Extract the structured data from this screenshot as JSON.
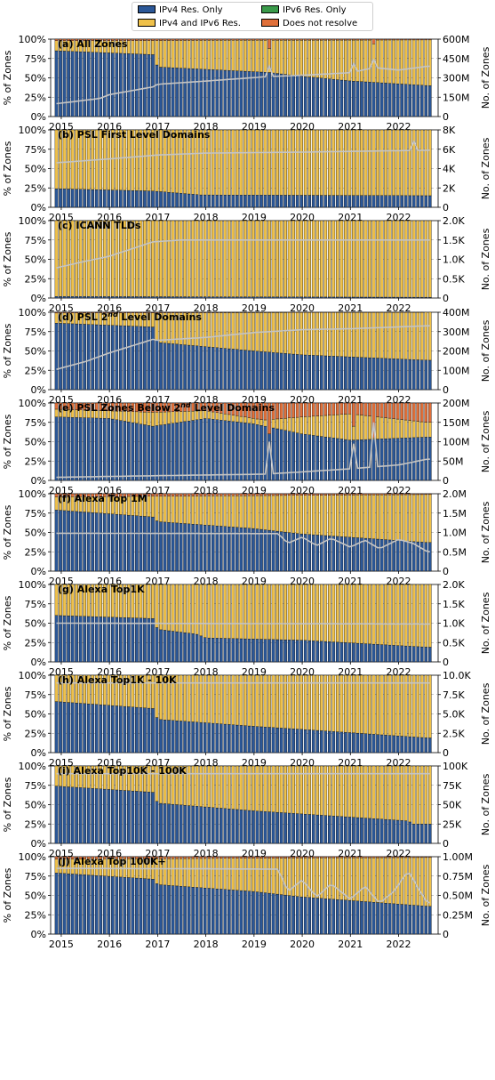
{
  "legend": {
    "items": [
      {
        "label": "IPv4 Res. Only",
        "color": "#2b5797"
      },
      {
        "label": "IPv6 Res. Only",
        "color": "#3a9a4a"
      },
      {
        "label": "IPv4 and IPv6 Res.",
        "color": "#efc14a"
      },
      {
        "label": "Does not resolve",
        "color": "#e0703a"
      }
    ]
  },
  "colors": {
    "ipv4": "#2b5797",
    "ipv6": "#3a9a4a",
    "both": "#efc14a",
    "none": "#e0703a",
    "line": "#c4c4c4"
  },
  "shared": {
    "x_ticks": [
      "2015",
      "2016",
      "2017",
      "2018",
      "2019",
      "2020",
      "2021",
      "2022"
    ],
    "y_left_ticks": [
      "0%",
      "25%",
      "50%",
      "75%",
      "100%"
    ],
    "y_left_label": "% of Zones",
    "y_right_label": "No. of Zones"
  },
  "chart_data": [
    {
      "type": "bar",
      "title": "(a) All Zones",
      "stack": "percent",
      "x_range": [
        2014.9,
        2022.75
      ],
      "ylim": [
        0,
        100
      ],
      "ipv4_keypoints": [
        [
          2014.9,
          85
        ],
        [
          2016.9,
          80
        ],
        [
          2017.0,
          64
        ],
        [
          2019.3,
          57
        ],
        [
          2020.0,
          52
        ],
        [
          2021.0,
          46
        ],
        [
          2022.6,
          40
        ]
      ],
      "none_keypoints": [
        [
          2014.9,
          2
        ],
        [
          2022.6,
          1
        ]
      ],
      "ipv6_keypoints": [
        [
          2014.9,
          0
        ],
        [
          2022.6,
          0
        ]
      ],
      "none_spikes": [
        [
          2019.35,
          12
        ],
        [
          2021.5,
          6
        ]
      ],
      "right_axis": {
        "ticks": [
          "0",
          "150M",
          "300M",
          "450M",
          "600M"
        ],
        "max": 600
      },
      "count_keypoints": [
        [
          2014.9,
          100
        ],
        [
          2015.8,
          140
        ],
        [
          2016.0,
          170
        ],
        [
          2016.9,
          230
        ],
        [
          2017.0,
          250
        ],
        [
          2018.0,
          275
        ],
        [
          2019.3,
          310
        ],
        [
          2020.0,
          320
        ],
        [
          2021.0,
          340
        ],
        [
          2021.5,
          380
        ],
        [
          2022.0,
          360
        ],
        [
          2022.6,
          390
        ]
      ],
      "count_spikes": [
        [
          2019.35,
          390
        ],
        [
          2021.5,
          440
        ],
        [
          2021.05,
          410
        ]
      ]
    },
    {
      "type": "bar",
      "title": "(b) PSL First Level Domains",
      "stack": "percent",
      "x_range": [
        2014.9,
        2022.75
      ],
      "ylim": [
        0,
        100
      ],
      "ipv4_keypoints": [
        [
          2014.9,
          24
        ],
        [
          2016.9,
          21
        ],
        [
          2017.9,
          16
        ],
        [
          2022.6,
          15
        ]
      ],
      "none_keypoints": [
        [
          2014.9,
          0
        ],
        [
          2022.6,
          0
        ]
      ],
      "ipv6_keypoints": [
        [
          2014.9,
          0
        ],
        [
          2022.6,
          0
        ]
      ],
      "none_spikes": [],
      "right_axis": {
        "ticks": [
          "0",
          "2K",
          "4K",
          "6K",
          "8K"
        ],
        "max": 8
      },
      "count_keypoints": [
        [
          2014.9,
          4.6
        ],
        [
          2016.0,
          5.0
        ],
        [
          2017.0,
          5.4
        ],
        [
          2018.0,
          5.6
        ],
        [
          2020.0,
          5.7
        ],
        [
          2022.6,
          5.9
        ]
      ],
      "count_spikes": [
        [
          2022.35,
          6.8
        ]
      ]
    },
    {
      "type": "bar",
      "title": "(c) ICANN TLDs",
      "stack": "percent",
      "x_range": [
        2014.9,
        2022.75
      ],
      "ylim": [
        0,
        100
      ],
      "ipv4_keypoints": [
        [
          2014.9,
          2
        ],
        [
          2022.6,
          1
        ]
      ],
      "none_keypoints": [
        [
          2014.9,
          0
        ],
        [
          2022.6,
          0
        ]
      ],
      "ipv6_keypoints": [
        [
          2014.9,
          0
        ],
        [
          2022.6,
          0
        ]
      ],
      "none_spikes": [],
      "right_axis": {
        "ticks": [
          "0",
          "0.5K",
          "1.0K",
          "1.5K",
          "2.0K"
        ],
        "max": 2.0
      },
      "count_keypoints": [
        [
          2014.9,
          0.78
        ],
        [
          2015.5,
          0.95
        ],
        [
          2016.0,
          1.08
        ],
        [
          2016.9,
          1.45
        ],
        [
          2017.5,
          1.5
        ],
        [
          2022.6,
          1.5
        ]
      ],
      "count_spikes": []
    },
    {
      "type": "bar",
      "title": "(d) PSL 2nd Level Domains",
      "stack": "percent",
      "x_range": [
        2014.9,
        2022.75
      ],
      "ylim": [
        0,
        100
      ],
      "ipv4_keypoints": [
        [
          2014.9,
          86
        ],
        [
          2016.9,
          81
        ],
        [
          2017.0,
          61
        ],
        [
          2019.0,
          50
        ],
        [
          2020.0,
          45
        ],
        [
          2022.6,
          38
        ]
      ],
      "none_keypoints": [
        [
          2014.9,
          1
        ],
        [
          2022.6,
          0
        ]
      ],
      "ipv6_keypoints": [
        [
          2014.9,
          0
        ],
        [
          2022.6,
          0
        ]
      ],
      "none_spikes": [],
      "right_axis": {
        "ticks": [
          "0",
          "100M",
          "200M",
          "300M",
          "400M"
        ],
        "max": 400
      },
      "count_keypoints": [
        [
          2014.9,
          105
        ],
        [
          2015.5,
          145
        ],
        [
          2016.0,
          190
        ],
        [
          2016.9,
          260
        ],
        [
          2017.0,
          255
        ],
        [
          2018.0,
          270
        ],
        [
          2019.0,
          295
        ],
        [
          2020.0,
          310
        ],
        [
          2021.0,
          315
        ],
        [
          2022.6,
          330
        ]
      ],
      "count_spikes": []
    },
    {
      "type": "bar",
      "title": "(e) PSL Zones Below 2nd Level Domains",
      "stack": "percent",
      "x_range": [
        2014.9,
        2022.75
      ],
      "ylim": [
        0,
        100
      ],
      "ipv4_keypoints": [
        [
          2014.9,
          82
        ],
        [
          2016.0,
          80
        ],
        [
          2016.9,
          70
        ],
        [
          2018.0,
          80
        ],
        [
          2019.0,
          73
        ],
        [
          2020.0,
          60
        ],
        [
          2021.0,
          52
        ],
        [
          2022.6,
          56
        ]
      ],
      "none_keypoints": [
        [
          2014.9,
          8
        ],
        [
          2016.9,
          12
        ],
        [
          2018.0,
          10
        ],
        [
          2019.2,
          22
        ],
        [
          2020.0,
          18
        ],
        [
          2021.0,
          14
        ],
        [
          2022.6,
          25
        ]
      ],
      "ipv6_keypoints": [
        [
          2014.9,
          0
        ],
        [
          2022.6,
          0
        ]
      ],
      "none_spikes": [
        [
          2019.35,
          40
        ],
        [
          2021.05,
          30
        ],
        [
          2021.5,
          45
        ]
      ],
      "right_axis": {
        "ticks": [
          "0",
          "50M",
          "100M",
          "150M",
          "200M"
        ],
        "max": 200
      },
      "count_keypoints": [
        [
          2014.9,
          8
        ],
        [
          2016.9,
          12
        ],
        [
          2018.0,
          14
        ],
        [
          2019.2,
          16
        ],
        [
          2020.0,
          22
        ],
        [
          2021.0,
          30
        ],
        [
          2022.0,
          40
        ],
        [
          2022.6,
          55
        ]
      ],
      "count_spikes": [
        [
          2019.35,
          100
        ],
        [
          2021.05,
          95
        ],
        [
          2021.5,
          150
        ]
      ]
    },
    {
      "type": "bar",
      "title": "(f) Alexa Top 1M",
      "stack": "percent",
      "x_range": [
        2014.9,
        2022.75
      ],
      "ylim": [
        0,
        100
      ],
      "ipv4_keypoints": [
        [
          2014.9,
          79
        ],
        [
          2016.9,
          70
        ],
        [
          2017.0,
          64
        ],
        [
          2019.0,
          55
        ],
        [
          2020.0,
          48
        ],
        [
          2022.6,
          37
        ]
      ],
      "none_keypoints": [
        [
          2014.9,
          4
        ],
        [
          2022.6,
          1
        ]
      ],
      "ipv6_keypoints": [
        [
          2014.9,
          0
        ],
        [
          2022.6,
          0
        ]
      ],
      "none_spikes": [],
      "right_axis": {
        "ticks": [
          "0",
          "0.5M",
          "1.0M",
          "1.5M",
          "2.0M"
        ],
        "max": 2.0
      },
      "count_keypoints": [
        [
          2014.9,
          0.98
        ],
        [
          2019.5,
          0.97
        ],
        [
          2019.7,
          0.72
        ],
        [
          2020.0,
          0.88
        ],
        [
          2020.3,
          0.66
        ],
        [
          2020.6,
          0.85
        ],
        [
          2021.0,
          0.62
        ],
        [
          2021.3,
          0.8
        ],
        [
          2021.6,
          0.58
        ],
        [
          2022.0,
          0.82
        ],
        [
          2022.3,
          0.72
        ],
        [
          2022.6,
          0.5
        ]
      ],
      "count_spikes": []
    },
    {
      "type": "bar",
      "title": "(g) Alexa Top1K",
      "stack": "percent",
      "x_range": [
        2014.9,
        2022.75
      ],
      "ylim": [
        0,
        100
      ],
      "ipv4_keypoints": [
        [
          2014.9,
          60
        ],
        [
          2016.9,
          56
        ],
        [
          2017.0,
          42
        ],
        [
          2017.8,
          36
        ],
        [
          2018.0,
          31
        ],
        [
          2020.0,
          28
        ],
        [
          2022.6,
          19
        ]
      ],
      "none_keypoints": [
        [
          2014.9,
          0
        ],
        [
          2022.6,
          0
        ]
      ],
      "ipv6_keypoints": [
        [
          2014.9,
          0
        ],
        [
          2022.6,
          0
        ]
      ],
      "none_spikes": [],
      "right_axis": {
        "ticks": [
          "0",
          "0.5K",
          "1.0K",
          "1.5K",
          "2.0K"
        ],
        "max": 2.0
      },
      "count_keypoints": [
        [
          2014.9,
          1.0
        ],
        [
          2022.6,
          0.98
        ]
      ],
      "count_spikes": []
    },
    {
      "type": "bar",
      "title": "(h) Alexa Top1K - 10K",
      "stack": "percent",
      "x_range": [
        2014.9,
        2022.75
      ],
      "ylim": [
        0,
        100
      ],
      "ipv4_keypoints": [
        [
          2014.9,
          66
        ],
        [
          2016.9,
          57
        ],
        [
          2017.0,
          43
        ],
        [
          2019.0,
          34
        ],
        [
          2020.0,
          30
        ],
        [
          2022.6,
          19
        ]
      ],
      "none_keypoints": [
        [
          2014.9,
          0
        ],
        [
          2022.6,
          0
        ]
      ],
      "ipv6_keypoints": [
        [
          2014.9,
          0
        ],
        [
          2022.6,
          0
        ]
      ],
      "none_spikes": [],
      "right_axis": {
        "ticks": [
          "0",
          "2.5K",
          "5.0K",
          "7.5K",
          "10.0K"
        ],
        "max": 10.0
      },
      "count_keypoints": [
        [
          2014.9,
          9.0
        ],
        [
          2022.6,
          9.0
        ]
      ],
      "count_spikes": []
    },
    {
      "type": "bar",
      "title": "(i) Alexa Top10K - 100K",
      "stack": "percent",
      "x_range": [
        2014.9,
        2022.75
      ],
      "ylim": [
        0,
        100
      ],
      "ipv4_keypoints": [
        [
          2014.9,
          74
        ],
        [
          2016.9,
          66
        ],
        [
          2017.0,
          52
        ],
        [
          2019.0,
          42
        ],
        [
          2020.0,
          38
        ],
        [
          2022.2,
          29
        ],
        [
          2022.3,
          25
        ],
        [
          2022.6,
          25
        ]
      ],
      "none_keypoints": [
        [
          2014.9,
          0
        ],
        [
          2022.6,
          0
        ]
      ],
      "ipv6_keypoints": [
        [
          2014.9,
          0
        ],
        [
          2022.6,
          0
        ]
      ],
      "none_spikes": [],
      "right_axis": {
        "ticks": [
          "0",
          "25K",
          "50K",
          "75K",
          "100K"
        ],
        "max": 100
      },
      "count_keypoints": [
        [
          2014.9,
          90
        ],
        [
          2022.6,
          90
        ]
      ],
      "count_spikes": []
    },
    {
      "type": "bar",
      "title": "(j) Alexa Top 100K+",
      "stack": "percent",
      "x_range": [
        2014.9,
        2022.75
      ],
      "ylim": [
        0,
        100
      ],
      "ipv4_keypoints": [
        [
          2014.9,
          79
        ],
        [
          2016.9,
          71
        ],
        [
          2017.0,
          64
        ],
        [
          2019.0,
          55
        ],
        [
          2020.0,
          48
        ],
        [
          2022.6,
          36
        ]
      ],
      "none_keypoints": [
        [
          2014.9,
          3
        ],
        [
          2022.6,
          1
        ]
      ],
      "ipv6_keypoints": [
        [
          2014.9,
          0
        ],
        [
          2022.6,
          0
        ]
      ],
      "none_spikes": [],
      "right_axis": {
        "ticks": [
          "0",
          "0.25M",
          "0.50M",
          "0.75M",
          "1.00M"
        ],
        "max": 1.0
      },
      "count_keypoints": [
        [
          2014.9,
          0.85
        ],
        [
          2019.5,
          0.84
        ],
        [
          2019.7,
          0.55
        ],
        [
          2020.0,
          0.7
        ],
        [
          2020.3,
          0.48
        ],
        [
          2020.6,
          0.65
        ],
        [
          2021.0,
          0.45
        ],
        [
          2021.3,
          0.62
        ],
        [
          2021.6,
          0.4
        ],
        [
          2021.9,
          0.55
        ],
        [
          2022.2,
          0.82
        ],
        [
          2022.4,
          0.6
        ],
        [
          2022.6,
          0.4
        ]
      ],
      "count_spikes": []
    }
  ]
}
